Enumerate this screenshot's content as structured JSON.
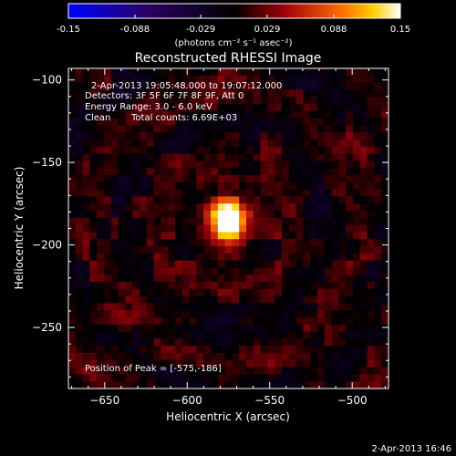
{
  "colorbar": {
    "min": -0.15,
    "max": 0.15,
    "tick_labels": [
      "-0.15",
      "-0.088",
      "-0.029",
      "0.029",
      "0.088",
      "0.15"
    ],
    "units_label": "(photons cm⁻² s⁻¹ asec⁻²)",
    "colormap": "blue-black-red-yellow-white"
  },
  "chart_data": {
    "type": "heatmap",
    "title": "Reconstructed RHESSI Image",
    "xlabel": "Heliocentric X (arcsec)",
    "ylabel": "Heliocentric Y (arcsec)",
    "xlim": [
      -672,
      -478
    ],
    "ylim": [
      -287,
      -93
    ],
    "x_ticks": [
      -650,
      -600,
      -550,
      -500
    ],
    "y_ticks": [
      -100,
      -150,
      -200,
      -250
    ],
    "x_tick_labels": [
      "−650",
      "−600",
      "−550",
      "−500"
    ],
    "y_tick_labels": [
      "−100",
      "−150",
      "−200",
      "−250"
    ],
    "annotations": {
      "time_range": "2-Apr-2013 19:05:48.000 to 19:07:12.000",
      "detectors": "Detectors: 3F 5F 6F 7F 8F 9F, Att 0",
      "energy": "Energy Range: 3.0 - 6.0 keV",
      "method": "Clean",
      "total_counts": "Total counts: 6.69E+03",
      "peak_label": "Position of Peak = [-575,-186]"
    },
    "peak": {
      "x": -575,
      "y": -186,
      "value": 0.15
    },
    "background_level": 0.02
  },
  "footer": {
    "timestamp": "2-Apr-2013 16:46"
  }
}
